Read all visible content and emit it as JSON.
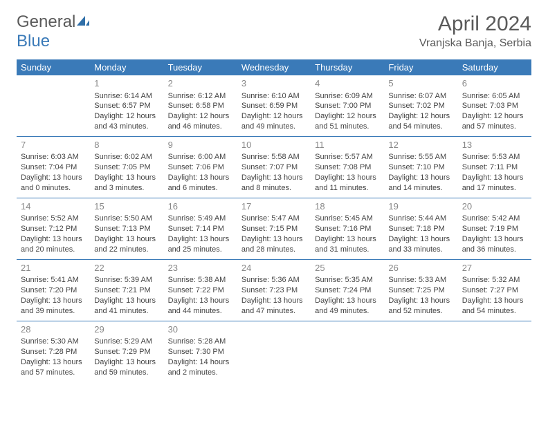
{
  "logo": {
    "part1": "General",
    "part2": "Blue"
  },
  "title": "April 2024",
  "location": "Vranjska Banja, Serbia",
  "colors": {
    "header_bg": "#3a7ab8",
    "header_text": "#ffffff",
    "border": "#3a7ab8",
    "daynum": "#888888",
    "body_text": "#444444",
    "title_text": "#5a5a5a",
    "logo_gray": "#5a5a5a",
    "logo_blue": "#3a7ab8",
    "background": "#ffffff"
  },
  "fonts": {
    "title_size": 30,
    "location_size": 16,
    "header_size": 13,
    "daynum_size": 13,
    "cell_size": 11
  },
  "weekdays": [
    "Sunday",
    "Monday",
    "Tuesday",
    "Wednesday",
    "Thursday",
    "Friday",
    "Saturday"
  ],
  "weeks": [
    [
      null,
      {
        "n": "1",
        "sr": "Sunrise: 6:14 AM",
        "ss": "Sunset: 6:57 PM",
        "d1": "Daylight: 12 hours",
        "d2": "and 43 minutes."
      },
      {
        "n": "2",
        "sr": "Sunrise: 6:12 AM",
        "ss": "Sunset: 6:58 PM",
        "d1": "Daylight: 12 hours",
        "d2": "and 46 minutes."
      },
      {
        "n": "3",
        "sr": "Sunrise: 6:10 AM",
        "ss": "Sunset: 6:59 PM",
        "d1": "Daylight: 12 hours",
        "d2": "and 49 minutes."
      },
      {
        "n": "4",
        "sr": "Sunrise: 6:09 AM",
        "ss": "Sunset: 7:00 PM",
        "d1": "Daylight: 12 hours",
        "d2": "and 51 minutes."
      },
      {
        "n": "5",
        "sr": "Sunrise: 6:07 AM",
        "ss": "Sunset: 7:02 PM",
        "d1": "Daylight: 12 hours",
        "d2": "and 54 minutes."
      },
      {
        "n": "6",
        "sr": "Sunrise: 6:05 AM",
        "ss": "Sunset: 7:03 PM",
        "d1": "Daylight: 12 hours",
        "d2": "and 57 minutes."
      }
    ],
    [
      {
        "n": "7",
        "sr": "Sunrise: 6:03 AM",
        "ss": "Sunset: 7:04 PM",
        "d1": "Daylight: 13 hours",
        "d2": "and 0 minutes."
      },
      {
        "n": "8",
        "sr": "Sunrise: 6:02 AM",
        "ss": "Sunset: 7:05 PM",
        "d1": "Daylight: 13 hours",
        "d2": "and 3 minutes."
      },
      {
        "n": "9",
        "sr": "Sunrise: 6:00 AM",
        "ss": "Sunset: 7:06 PM",
        "d1": "Daylight: 13 hours",
        "d2": "and 6 minutes."
      },
      {
        "n": "10",
        "sr": "Sunrise: 5:58 AM",
        "ss": "Sunset: 7:07 PM",
        "d1": "Daylight: 13 hours",
        "d2": "and 8 minutes."
      },
      {
        "n": "11",
        "sr": "Sunrise: 5:57 AM",
        "ss": "Sunset: 7:08 PM",
        "d1": "Daylight: 13 hours",
        "d2": "and 11 minutes."
      },
      {
        "n": "12",
        "sr": "Sunrise: 5:55 AM",
        "ss": "Sunset: 7:10 PM",
        "d1": "Daylight: 13 hours",
        "d2": "and 14 minutes."
      },
      {
        "n": "13",
        "sr": "Sunrise: 5:53 AM",
        "ss": "Sunset: 7:11 PM",
        "d1": "Daylight: 13 hours",
        "d2": "and 17 minutes."
      }
    ],
    [
      {
        "n": "14",
        "sr": "Sunrise: 5:52 AM",
        "ss": "Sunset: 7:12 PM",
        "d1": "Daylight: 13 hours",
        "d2": "and 20 minutes."
      },
      {
        "n": "15",
        "sr": "Sunrise: 5:50 AM",
        "ss": "Sunset: 7:13 PM",
        "d1": "Daylight: 13 hours",
        "d2": "and 22 minutes."
      },
      {
        "n": "16",
        "sr": "Sunrise: 5:49 AM",
        "ss": "Sunset: 7:14 PM",
        "d1": "Daylight: 13 hours",
        "d2": "and 25 minutes."
      },
      {
        "n": "17",
        "sr": "Sunrise: 5:47 AM",
        "ss": "Sunset: 7:15 PM",
        "d1": "Daylight: 13 hours",
        "d2": "and 28 minutes."
      },
      {
        "n": "18",
        "sr": "Sunrise: 5:45 AM",
        "ss": "Sunset: 7:16 PM",
        "d1": "Daylight: 13 hours",
        "d2": "and 31 minutes."
      },
      {
        "n": "19",
        "sr": "Sunrise: 5:44 AM",
        "ss": "Sunset: 7:18 PM",
        "d1": "Daylight: 13 hours",
        "d2": "and 33 minutes."
      },
      {
        "n": "20",
        "sr": "Sunrise: 5:42 AM",
        "ss": "Sunset: 7:19 PM",
        "d1": "Daylight: 13 hours",
        "d2": "and 36 minutes."
      }
    ],
    [
      {
        "n": "21",
        "sr": "Sunrise: 5:41 AM",
        "ss": "Sunset: 7:20 PM",
        "d1": "Daylight: 13 hours",
        "d2": "and 39 minutes."
      },
      {
        "n": "22",
        "sr": "Sunrise: 5:39 AM",
        "ss": "Sunset: 7:21 PM",
        "d1": "Daylight: 13 hours",
        "d2": "and 41 minutes."
      },
      {
        "n": "23",
        "sr": "Sunrise: 5:38 AM",
        "ss": "Sunset: 7:22 PM",
        "d1": "Daylight: 13 hours",
        "d2": "and 44 minutes."
      },
      {
        "n": "24",
        "sr": "Sunrise: 5:36 AM",
        "ss": "Sunset: 7:23 PM",
        "d1": "Daylight: 13 hours",
        "d2": "and 47 minutes."
      },
      {
        "n": "25",
        "sr": "Sunrise: 5:35 AM",
        "ss": "Sunset: 7:24 PM",
        "d1": "Daylight: 13 hours",
        "d2": "and 49 minutes."
      },
      {
        "n": "26",
        "sr": "Sunrise: 5:33 AM",
        "ss": "Sunset: 7:25 PM",
        "d1": "Daylight: 13 hours",
        "d2": "and 52 minutes."
      },
      {
        "n": "27",
        "sr": "Sunrise: 5:32 AM",
        "ss": "Sunset: 7:27 PM",
        "d1": "Daylight: 13 hours",
        "d2": "and 54 minutes."
      }
    ],
    [
      {
        "n": "28",
        "sr": "Sunrise: 5:30 AM",
        "ss": "Sunset: 7:28 PM",
        "d1": "Daylight: 13 hours",
        "d2": "and 57 minutes."
      },
      {
        "n": "29",
        "sr": "Sunrise: 5:29 AM",
        "ss": "Sunset: 7:29 PM",
        "d1": "Daylight: 13 hours",
        "d2": "and 59 minutes."
      },
      {
        "n": "30",
        "sr": "Sunrise: 5:28 AM",
        "ss": "Sunset: 7:30 PM",
        "d1": "Daylight: 14 hours",
        "d2": "and 2 minutes."
      },
      null,
      null,
      null,
      null
    ]
  ]
}
